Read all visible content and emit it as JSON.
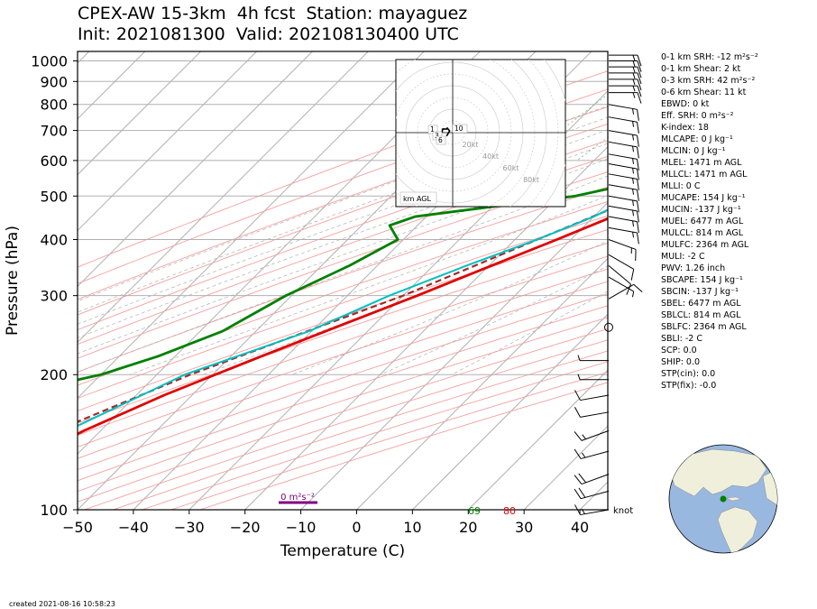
{
  "title_line1": "CPEX-AW 15-3km  4h fcst  Station: mayaguez",
  "title_line2": "Init: 2021081300  Valid: 202108130400 UTC",
  "created": "created 2021-08-16 10:58:23",
  "stats": [
    "0-1 km SRH: -12 m²s⁻²",
    "0-1 km Shear: 2 kt",
    "0-3 km SRH: 42 m²s⁻²",
    "0-6 km Shear: 11 kt",
    "EBWD: 0 kt",
    "Eff. SRH: 0 m²s⁻²",
    "K-index: 18",
    "MLCAPE: 0 J kg⁻¹",
    "MLCIN: 0 J kg⁻¹",
    "MLEL: 1471 m AGL",
    "MLLCL: 1471 m AGL",
    "MLLI: 0 C",
    "MUCAPE: 154 J kg⁻¹",
    "MUCIN: -137 J kg⁻¹",
    "MUEL: 6477 m AGL",
    "MULCL: 814 m AGL",
    "MULFC: 2364 m AGL",
    "MULI: -2 C",
    "PWV: 1.26 inch",
    "SBCAPE: 154 J kg⁻¹",
    "SBCIN: -137 J kg⁻¹",
    "SBEL: 6477 m AGL",
    "SBLCL: 814 m AGL",
    "SBLFC: 2364 m AGL",
    "SBLI: -2 C",
    "SCP: 0.0",
    "SHIP: 0.0",
    "STP(cin): 0.0",
    "STP(fix): -0.0"
  ],
  "chart_data": {
    "type": "skew-t",
    "xlabel": "Temperature (C)",
    "ylabel": "Pressure (hPa)",
    "xlim": [
      -50,
      45
    ],
    "ylim": [
      1050,
      100
    ],
    "x_ticks": [
      "−50",
      "−40",
      "−30",
      "−20",
      "−10",
      "0",
      "10",
      "20",
      "30",
      "40"
    ],
    "y_ticks": [
      "100",
      "200",
      "300",
      "400",
      "500",
      "600",
      "700",
      "800",
      "900",
      "1000"
    ],
    "temperature": {
      "color": "#e00000",
      "points": [
        [
          1000,
          27
        ],
        [
          980,
          26.3
        ],
        [
          950,
          25.0
        ],
        [
          920,
          23.3
        ],
        [
          880,
          21.2
        ],
        [
          850,
          19.6
        ],
        [
          800,
          16.8
        ],
        [
          700,
          11.6
        ],
        [
          600,
          5.0
        ],
        [
          550,
          1.5
        ],
        [
          500,
          -3.5
        ],
        [
          450,
          -6.6
        ],
        [
          400,
          -12.5
        ],
        [
          350,
          -19.5
        ],
        [
          300,
          -27.5
        ],
        [
          250,
          -37.5
        ],
        [
          220,
          -44.5
        ],
        [
          200,
          -49.5
        ],
        [
          180,
          -55
        ],
        [
          150,
          -63
        ],
        [
          130,
          -68
        ],
        [
          110,
          -73
        ],
        [
          100,
          -76
        ]
      ]
    },
    "dewpoint": {
      "color": "#008000",
      "points": [
        [
          1000,
          23
        ],
        [
          980,
          22
        ],
        [
          950,
          20
        ],
        [
          920,
          18.2
        ],
        [
          880,
          16.2
        ],
        [
          850,
          14.5
        ],
        [
          800,
          11
        ],
        [
          750,
          3
        ],
        [
          700,
          -4
        ],
        [
          650,
          -5
        ],
        [
          600,
          -2.5
        ],
        [
          550,
          -5
        ],
        [
          500,
          -17
        ],
        [
          450,
          -42
        ],
        [
          430,
          -45
        ],
        [
          400,
          -41
        ],
        [
          350,
          -45
        ],
        [
          300,
          -51
        ],
        [
          250,
          -56
        ],
        [
          220,
          -63
        ],
        [
          200,
          -70
        ],
        [
          180,
          -83
        ],
        [
          170,
          -79
        ],
        [
          150,
          -81
        ],
        [
          130,
          -83
        ],
        [
          110,
          -83
        ],
        [
          100,
          -84
        ]
      ]
    },
    "parcel": {
      "color": "#a52a2a",
      "points": [
        [
          1000,
          28
        ],
        [
          950,
          22
        ],
        [
          900,
          19
        ],
        [
          850,
          17.5
        ],
        [
          800,
          15.2
        ],
        [
          700,
          10
        ],
        [
          600,
          3.5
        ],
        [
          500,
          -5
        ],
        [
          400,
          -16
        ],
        [
          300,
          -30
        ],
        [
          200,
          -54
        ],
        [
          150,
          -68
        ],
        [
          100,
          -88
        ]
      ]
    },
    "wetbulb": {
      "color": "#00bfc0",
      "points": [
        [
          1000,
          23.5
        ],
        [
          950,
          21
        ],
        [
          900,
          18.8
        ],
        [
          850,
          16.4
        ],
        [
          800,
          13.6
        ],
        [
          700,
          8.1
        ],
        [
          600,
          2
        ],
        [
          550,
          -1
        ],
        [
          500,
          -6
        ],
        [
          450,
          -10
        ],
        [
          400,
          -16
        ],
        [
          350,
          -24
        ],
        [
          300,
          -32.5
        ],
        [
          250,
          -40.5
        ],
        [
          200,
          -55
        ],
        [
          180,
          -59
        ],
        [
          150,
          -66
        ],
        [
          130,
          -70
        ],
        [
          110,
          -74
        ],
        [
          100,
          -76
        ]
      ]
    },
    "surface_labels": {
      "temperature": "80",
      "dewpoint": "69",
      "temperature_color": "#e00000",
      "dewpoint_color": "#008000"
    },
    "srh_bar_label": "0 m²s⁻²",
    "srh_bar_color": "#800080",
    "barb_unit": "knot",
    "wind_barbs": [
      {
        "p": 100,
        "dir": 260,
        "kt": 15
      },
      {
        "p": 110,
        "dir": 255,
        "kt": 20
      },
      {
        "p": 120,
        "dir": 250,
        "kt": 20
      },
      {
        "p": 135,
        "dir": 255,
        "kt": 15
      },
      {
        "p": 150,
        "dir": 250,
        "kt": 15
      },
      {
        "p": 165,
        "dir": 260,
        "kt": 10
      },
      {
        "p": 180,
        "dir": 260,
        "kt": 10
      },
      {
        "p": 195,
        "dir": 270,
        "kt": 5
      },
      {
        "p": 215,
        "dir": 270,
        "kt": 5
      },
      {
        "p": 255,
        "dir": 0,
        "kt": 0
      },
      {
        "p": 295,
        "dir": 60,
        "kt": 10
      },
      {
        "p": 330,
        "dir": 120,
        "kt": 5
      },
      {
        "p": 350,
        "dir": 130,
        "kt": 10
      },
      {
        "p": 370,
        "dir": 120,
        "kt": 10
      },
      {
        "p": 400,
        "dir": 110,
        "kt": 15
      },
      {
        "p": 425,
        "dir": 100,
        "kt": 15
      },
      {
        "p": 450,
        "dir": 100,
        "kt": 15
      },
      {
        "p": 475,
        "dir": 100,
        "kt": 15
      },
      {
        "p": 500,
        "dir": 100,
        "kt": 15
      },
      {
        "p": 530,
        "dir": 100,
        "kt": 15
      },
      {
        "p": 560,
        "dir": 100,
        "kt": 15
      },
      {
        "p": 590,
        "dir": 100,
        "kt": 15
      },
      {
        "p": 620,
        "dir": 100,
        "kt": 15
      },
      {
        "p": 660,
        "dir": 100,
        "kt": 15
      },
      {
        "p": 700,
        "dir": 100,
        "kt": 15
      },
      {
        "p": 750,
        "dir": 100,
        "kt": 15
      },
      {
        "p": 800,
        "dir": 100,
        "kt": 15
      },
      {
        "p": 850,
        "dir": 90,
        "kt": 15
      },
      {
        "p": 880,
        "dir": 90,
        "kt": 15
      },
      {
        "p": 910,
        "dir": 90,
        "kt": 15
      },
      {
        "p": 940,
        "dir": 90,
        "kt": 15
      },
      {
        "p": 970,
        "dir": 90,
        "kt": 15
      },
      {
        "p": 1000,
        "dir": 90,
        "kt": 15
      },
      {
        "p": 1030,
        "dir": 90,
        "kt": 15
      }
    ],
    "hodograph": {
      "rings_kt": [
        20,
        40,
        60,
        80
      ],
      "ring_labels": [
        "20kt",
        "40kt",
        "60kt",
        "80kt"
      ],
      "badge": "km AGL",
      "height_labels": [
        "1",
        "3",
        "6",
        "10"
      ],
      "line_color": "#000000"
    },
    "globe": {
      "ocean_color": "#99b8e0",
      "land_color": "#efefdb",
      "station_marker_color": "#008000"
    }
  }
}
